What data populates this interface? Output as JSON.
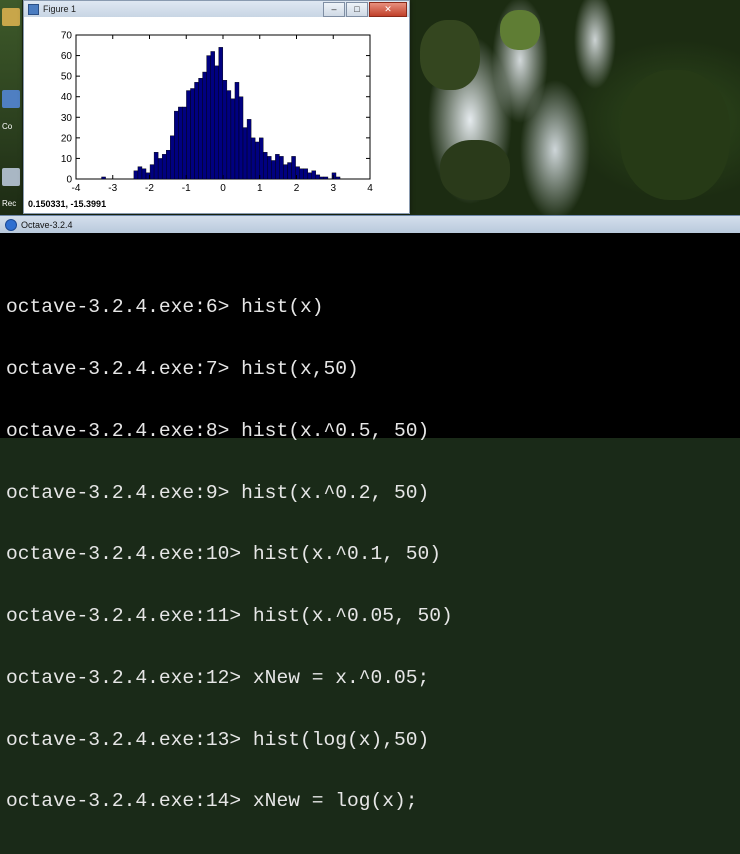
{
  "desktop": {
    "icon_labels": [
      "Co",
      "Rec"
    ]
  },
  "figure_window": {
    "title": "Figure 1",
    "buttons": {
      "minimize": "–",
      "maximize": "□",
      "close": "✕"
    },
    "status_coords": "0.150331, -15.3991"
  },
  "chart_data": {
    "type": "bar",
    "title": "",
    "xlabel": "",
    "ylabel": "",
    "xlim": [
      -4,
      4
    ],
    "ylim": [
      0,
      70
    ],
    "x_ticks": [
      -4,
      -3,
      -2,
      -1,
      0,
      1,
      2,
      3,
      4
    ],
    "y_ticks": [
      0,
      10,
      20,
      30,
      40,
      50,
      60,
      70
    ],
    "bin_width": 0.11,
    "x": [
      -3.25,
      -3.14,
      -3.03,
      -2.92,
      -2.81,
      -2.7,
      -2.59,
      -2.48,
      -2.37,
      -2.26,
      -2.15,
      -2.04,
      -1.93,
      -1.82,
      -1.71,
      -1.6,
      -1.49,
      -1.38,
      -1.27,
      -1.16,
      -1.05,
      -0.94,
      -0.83,
      -0.72,
      -0.61,
      -0.5,
      -0.39,
      -0.28,
      -0.17,
      -0.06,
      0.05,
      0.16,
      0.27,
      0.38,
      0.49,
      0.6,
      0.71,
      0.82,
      0.93,
      1.04,
      1.15,
      1.26,
      1.37,
      1.48,
      1.59,
      1.7,
      1.81,
      1.92,
      2.03,
      2.14,
      2.25,
      2.36,
      2.47,
      2.58,
      2.69,
      2.8,
      2.91,
      3.02,
      3.13
    ],
    "values": [
      1,
      0,
      0,
      0,
      0,
      0,
      0,
      0,
      4,
      6,
      5,
      3,
      7,
      13,
      10,
      12,
      14,
      21,
      33,
      35,
      35,
      43,
      44,
      47,
      49,
      52,
      60,
      62,
      55,
      64,
      48,
      43,
      39,
      47,
      40,
      25,
      29,
      20,
      18,
      20,
      13,
      11,
      9,
      12,
      11,
      7,
      8,
      11,
      6,
      5,
      5,
      3,
      4,
      2,
      1,
      1,
      0,
      3,
      1
    ],
    "bar_color": "#000080"
  },
  "octave_window": {
    "title": "Octave-3.2.4",
    "lines": [
      "octave-3.2.4.exe:6> hist(x)",
      "octave-3.2.4.exe:7> hist(x,50)",
      "octave-3.2.4.exe:8> hist(x.^0.5, 50)",
      "octave-3.2.4.exe:9> hist(x.^0.2, 50)",
      "octave-3.2.4.exe:10> hist(x.^0.1, 50)",
      "octave-3.2.4.exe:11> hist(x.^0.05, 50)",
      "octave-3.2.4.exe:12> xNew = x.^0.05;",
      "octave-3.2.4.exe:13> hist(log(x),50)",
      "octave-3.2.4.exe:14> xNew = log(x);"
    ]
  }
}
